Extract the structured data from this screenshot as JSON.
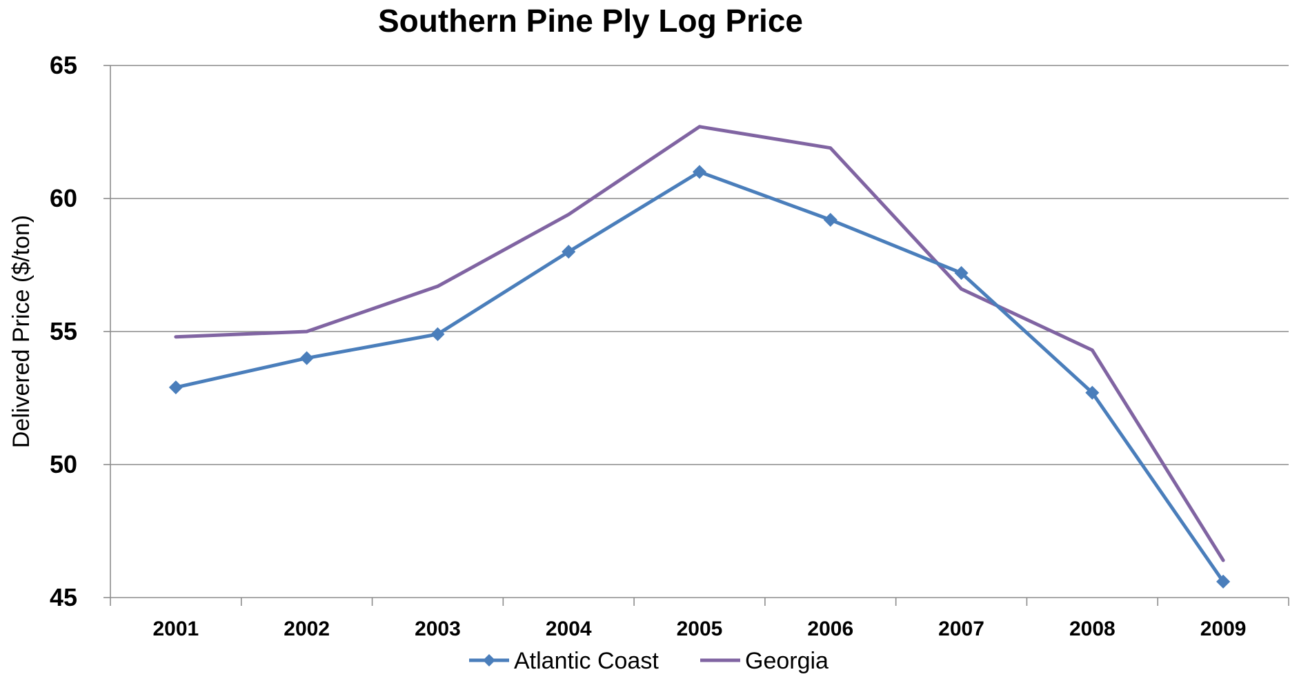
{
  "chart_data": {
    "type": "line",
    "title": "Southern Pine Ply Log Price",
    "xlabel": "",
    "ylabel": "Delivered Price ($/ton)",
    "categories": [
      "2001",
      "2002",
      "2003",
      "2004",
      "2005",
      "2006",
      "2007",
      "2008",
      "2009"
    ],
    "ylim": [
      45,
      65
    ],
    "yticks": [
      "45",
      "50",
      "55",
      "60",
      "65"
    ],
    "grid": true,
    "legend_position": "bottom",
    "series": [
      {
        "name": "Atlantic Coast",
        "color": "#4a7ebb",
        "marker": "diamond",
        "values": [
          52.9,
          54.0,
          54.9,
          58.0,
          61.0,
          59.2,
          57.2,
          52.7,
          45.6
        ]
      },
      {
        "name": "Georgia",
        "color": "#8064a2",
        "marker": "none",
        "values": [
          54.8,
          55.0,
          56.7,
          59.4,
          62.7,
          61.9,
          56.6,
          54.3,
          46.4
        ]
      }
    ]
  }
}
